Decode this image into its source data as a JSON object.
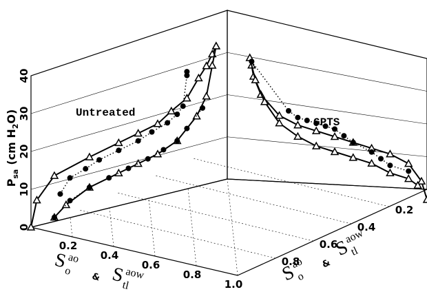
{
  "chart_data": [
    {
      "type": "line",
      "annotation": "Untreated",
      "xlim": [
        0,
        1
      ],
      "xticks": [
        0.2,
        0.4,
        0.6,
        0.8,
        {
          "value": 1,
          "label": "1.0"
        }
      ],
      "ylim": [
        0,
        40
      ],
      "yticks": [
        0,
        10,
        20,
        30,
        40
      ],
      "ylabel": {
        "base": "P",
        "sub": "sa",
        "unit_start": "(cm H",
        "unit_sub": "2",
        "unit_end": "O)"
      },
      "xlabel": {
        "first": {
          "base": "S",
          "sup": "ao",
          "sub": "o"
        },
        "joiner": "&",
        "second": {
          "base": "S",
          "sup": "aow",
          "sub": "tl"
        }
      },
      "grid": true,
      "series": [
        {
          "marker": "triangle",
          "line": "solid",
          "color": "#000000",
          "x": [
            0.0,
            0.03,
            0.12,
            0.3,
            0.45,
            0.55,
            0.65,
            0.72,
            0.8,
            0.86,
            0.9,
            0.93,
            0.95
          ],
          "values": [
            0,
            7,
            13,
            17,
            20,
            22,
            24,
            27,
            30,
            35,
            38,
            41,
            43
          ]
        },
        {
          "marker": "triangle",
          "line": "solid",
          "color": "#000000",
          "x": [
            0.12,
            0.18,
            0.3,
            0.45,
            0.55,
            0.65,
            0.75,
            0.85,
            0.9,
            0.93,
            0.95
          ],
          "values": [
            2,
            5,
            9,
            12,
            14,
            16,
            19,
            25,
            30,
            38,
            43
          ]
        },
        {
          "marker": "circle",
          "line": "dotted",
          "color": "#000000",
          "x": [
            0.15,
            0.2,
            0.28,
            0.35,
            0.45,
            0.55,
            0.62,
            0.7,
            0.75,
            0.78,
            0.8,
            0.8
          ],
          "values": [
            8,
            12,
            14,
            16,
            18,
            20,
            22,
            24,
            26,
            28,
            36,
            37
          ]
        },
        {
          "marker": "circle",
          "line": "dotted",
          "color": "#000000",
          "x": [
            0.12,
            0.2,
            0.3,
            0.4,
            0.5,
            0.6,
            0.68,
            0.75,
            0.8,
            0.88
          ],
          "values": [
            2,
            6,
            9,
            11,
            13,
            15,
            17,
            19,
            22,
            27
          ]
        }
      ]
    },
    {
      "type": "line",
      "annotation": "GPTS",
      "xlim": [
        0,
        1
      ],
      "xticks": [
        0.2,
        0.4,
        0.6,
        0.8
      ],
      "ylim": [
        0,
        40
      ],
      "xlabel": {
        "first": {
          "base": "S",
          "sup": "ao",
          "sub": "o"
        },
        "joiner": "&",
        "second": {
          "base": "S",
          "sup": "aow",
          "sub": "tl"
        }
      },
      "series": [
        {
          "marker": "triangle",
          "line": "solid",
          "color": "#000000",
          "x": [
            0.95,
            0.94,
            0.9,
            0.8,
            0.7,
            0.6,
            0.5,
            0.4,
            0.3,
            0.2,
            0.1,
            0.03,
            0.0
          ],
          "values": [
            40,
            37,
            32,
            26,
            23,
            21,
            19,
            17,
            15,
            13,
            10,
            5,
            0
          ]
        },
        {
          "marker": "triangle",
          "line": "solid",
          "color": "#000000",
          "x": [
            0.96,
            0.93,
            0.88,
            0.8,
            0.7,
            0.6,
            0.5,
            0.4,
            0.3,
            0.2,
            0.1,
            0.05
          ],
          "values": [
            42,
            36,
            30,
            24,
            20,
            17,
            15,
            13,
            11,
            8,
            6,
            4
          ]
        },
        {
          "marker": "circle",
          "line": "dotted",
          "color": "#000000",
          "x": [
            0.95,
            0.75,
            0.7,
            0.65,
            0.6,
            0.55,
            0.5,
            0.45,
            0.4,
            0.3,
            0.25,
            0.2,
            0.1
          ],
          "values": [
            41,
            27,
            25,
            24,
            23,
            22,
            21,
            19,
            17,
            14,
            12,
            10,
            8
          ]
        }
      ]
    }
  ]
}
